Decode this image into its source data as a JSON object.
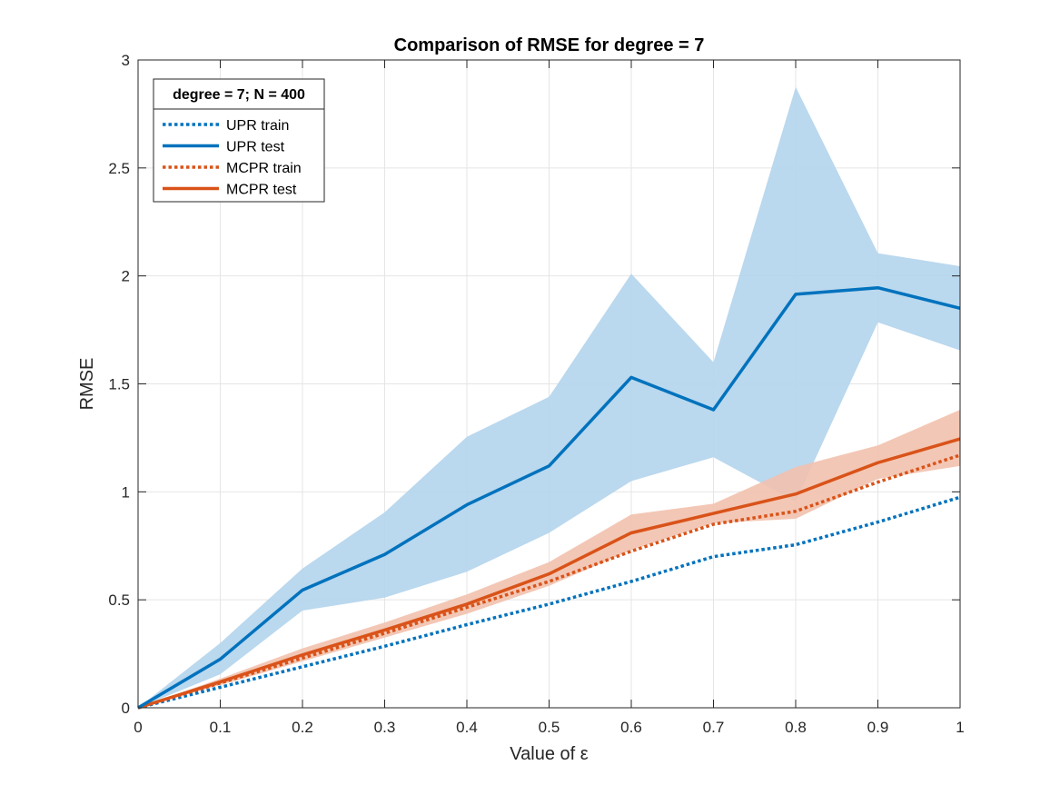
{
  "chart_data": {
    "type": "line",
    "title": "Comparison of RMSE for degree = 7",
    "xlabel": "Value of ε",
    "ylabel": "RMSE",
    "xlim": [
      0,
      1
    ],
    "ylim": [
      0,
      3
    ],
    "grid": true,
    "x": [
      0,
      0.1,
      0.2,
      0.3,
      0.4,
      0.5,
      0.6,
      0.7,
      0.8,
      0.9,
      1.0
    ],
    "xticks": [
      "0",
      "0.1",
      "0.2",
      "0.3",
      "0.4",
      "0.5",
      "0.6",
      "0.7",
      "0.8",
      "0.9",
      "1"
    ],
    "yticks": [
      "0",
      "0.5",
      "1",
      "1.5",
      "2",
      "2.5",
      "3"
    ],
    "legend": {
      "title": "degree = 7; N = 400",
      "placement": "top-left"
    },
    "series": [
      {
        "name": "UPR train",
        "style": "dotted",
        "color": "#0072BD",
        "values": [
          0,
          0.095,
          0.19,
          0.285,
          0.385,
          0.48,
          0.585,
          0.7,
          0.755,
          0.86,
          0.975
        ]
      },
      {
        "name": "UPR test",
        "style": "solid",
        "color": "#0072BD",
        "values": [
          0,
          0.225,
          0.545,
          0.71,
          0.94,
          1.12,
          1.53,
          1.38,
          1.915,
          1.945,
          1.85
        ],
        "band_upper": [
          0,
          0.3,
          0.645,
          0.905,
          1.255,
          1.44,
          2.01,
          1.6,
          2.875,
          2.105,
          2.045
        ],
        "band_lower": [
          0,
          0.155,
          0.45,
          0.51,
          0.63,
          0.81,
          1.05,
          1.16,
          0.955,
          1.785,
          1.655
        ],
        "band_color": "#B3D4EC"
      },
      {
        "name": "MCPR train",
        "style": "dotted",
        "color": "#D95319",
        "values": [
          0,
          0.115,
          0.23,
          0.345,
          0.465,
          0.585,
          0.725,
          0.85,
          0.91,
          1.045,
          1.17
        ]
      },
      {
        "name": "MCPR test",
        "style": "solid",
        "color": "#D95319",
        "values": [
          0,
          0.12,
          0.245,
          0.36,
          0.48,
          0.62,
          0.81,
          0.9,
          0.99,
          1.135,
          1.245
        ],
        "band_upper": [
          0,
          0.135,
          0.275,
          0.395,
          0.525,
          0.675,
          0.895,
          0.945,
          1.115,
          1.215,
          1.38
        ],
        "band_lower": [
          0,
          0.105,
          0.215,
          0.325,
          0.435,
          0.565,
          0.73,
          0.855,
          0.875,
          1.06,
          1.12
        ],
        "band_color": "#F2C1AD"
      }
    ]
  }
}
